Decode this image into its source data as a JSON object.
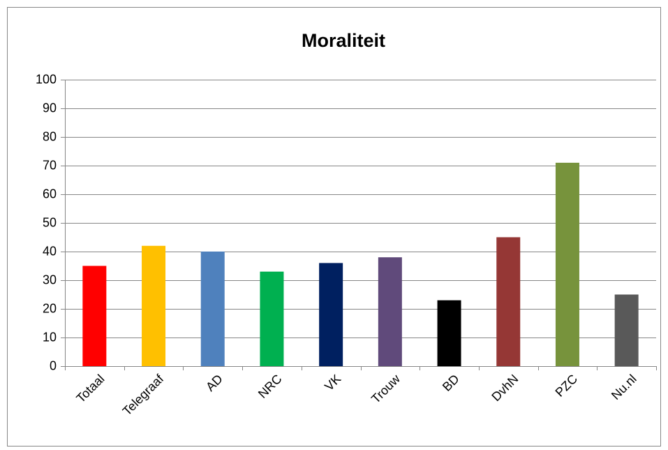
{
  "chart_data": {
    "type": "bar",
    "title": "Moraliteit",
    "categories": [
      "Totaal",
      "Telegraaf",
      "AD",
      "NRC",
      "VK",
      "Trouw",
      "BD",
      "DvhN",
      "PZC",
      "Nu.nl"
    ],
    "values": [
      35,
      42,
      40,
      33,
      36,
      38,
      23,
      45,
      71,
      25
    ],
    "colors": [
      "#ff0000",
      "#ffc000",
      "#4f81bd",
      "#00b050",
      "#002060",
      "#604a7b",
      "#000000",
      "#953735",
      "#77933c",
      "#595959"
    ],
    "ylim": [
      0,
      100
    ],
    "yticks": [
      0,
      10,
      20,
      30,
      40,
      50,
      60,
      70,
      80,
      90,
      100
    ],
    "grid": true
  }
}
